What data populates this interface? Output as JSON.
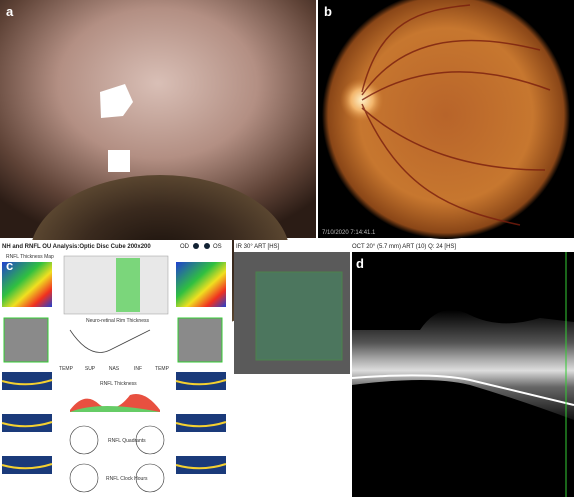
{
  "panels": {
    "a": {
      "label": "a"
    },
    "b": {
      "label": "b",
      "timestamp": "7/10/2020 7:14:41.1"
    },
    "c": {
      "label": "c",
      "title": "NH and RNFL OU Analysis:Optic Disc Cube 200x200",
      "od": "OD",
      "os": "OS",
      "sections": [
        "RNFL Thickness Map",
        "Neuro-retinal Rim Thickness",
        "RNFL Thickness",
        "RNFL Quadrants",
        "RNFL Clock Hours"
      ],
      "axis": [
        "TEMP",
        "SUP",
        "NAS",
        "INF",
        "TEMP"
      ]
    },
    "ir": {
      "title": "IR 30° ART [HS]"
    },
    "d": {
      "label": "d",
      "title": "OCT 20° (5.7 mm) ART (10) Q: 24 [HS]"
    }
  }
}
